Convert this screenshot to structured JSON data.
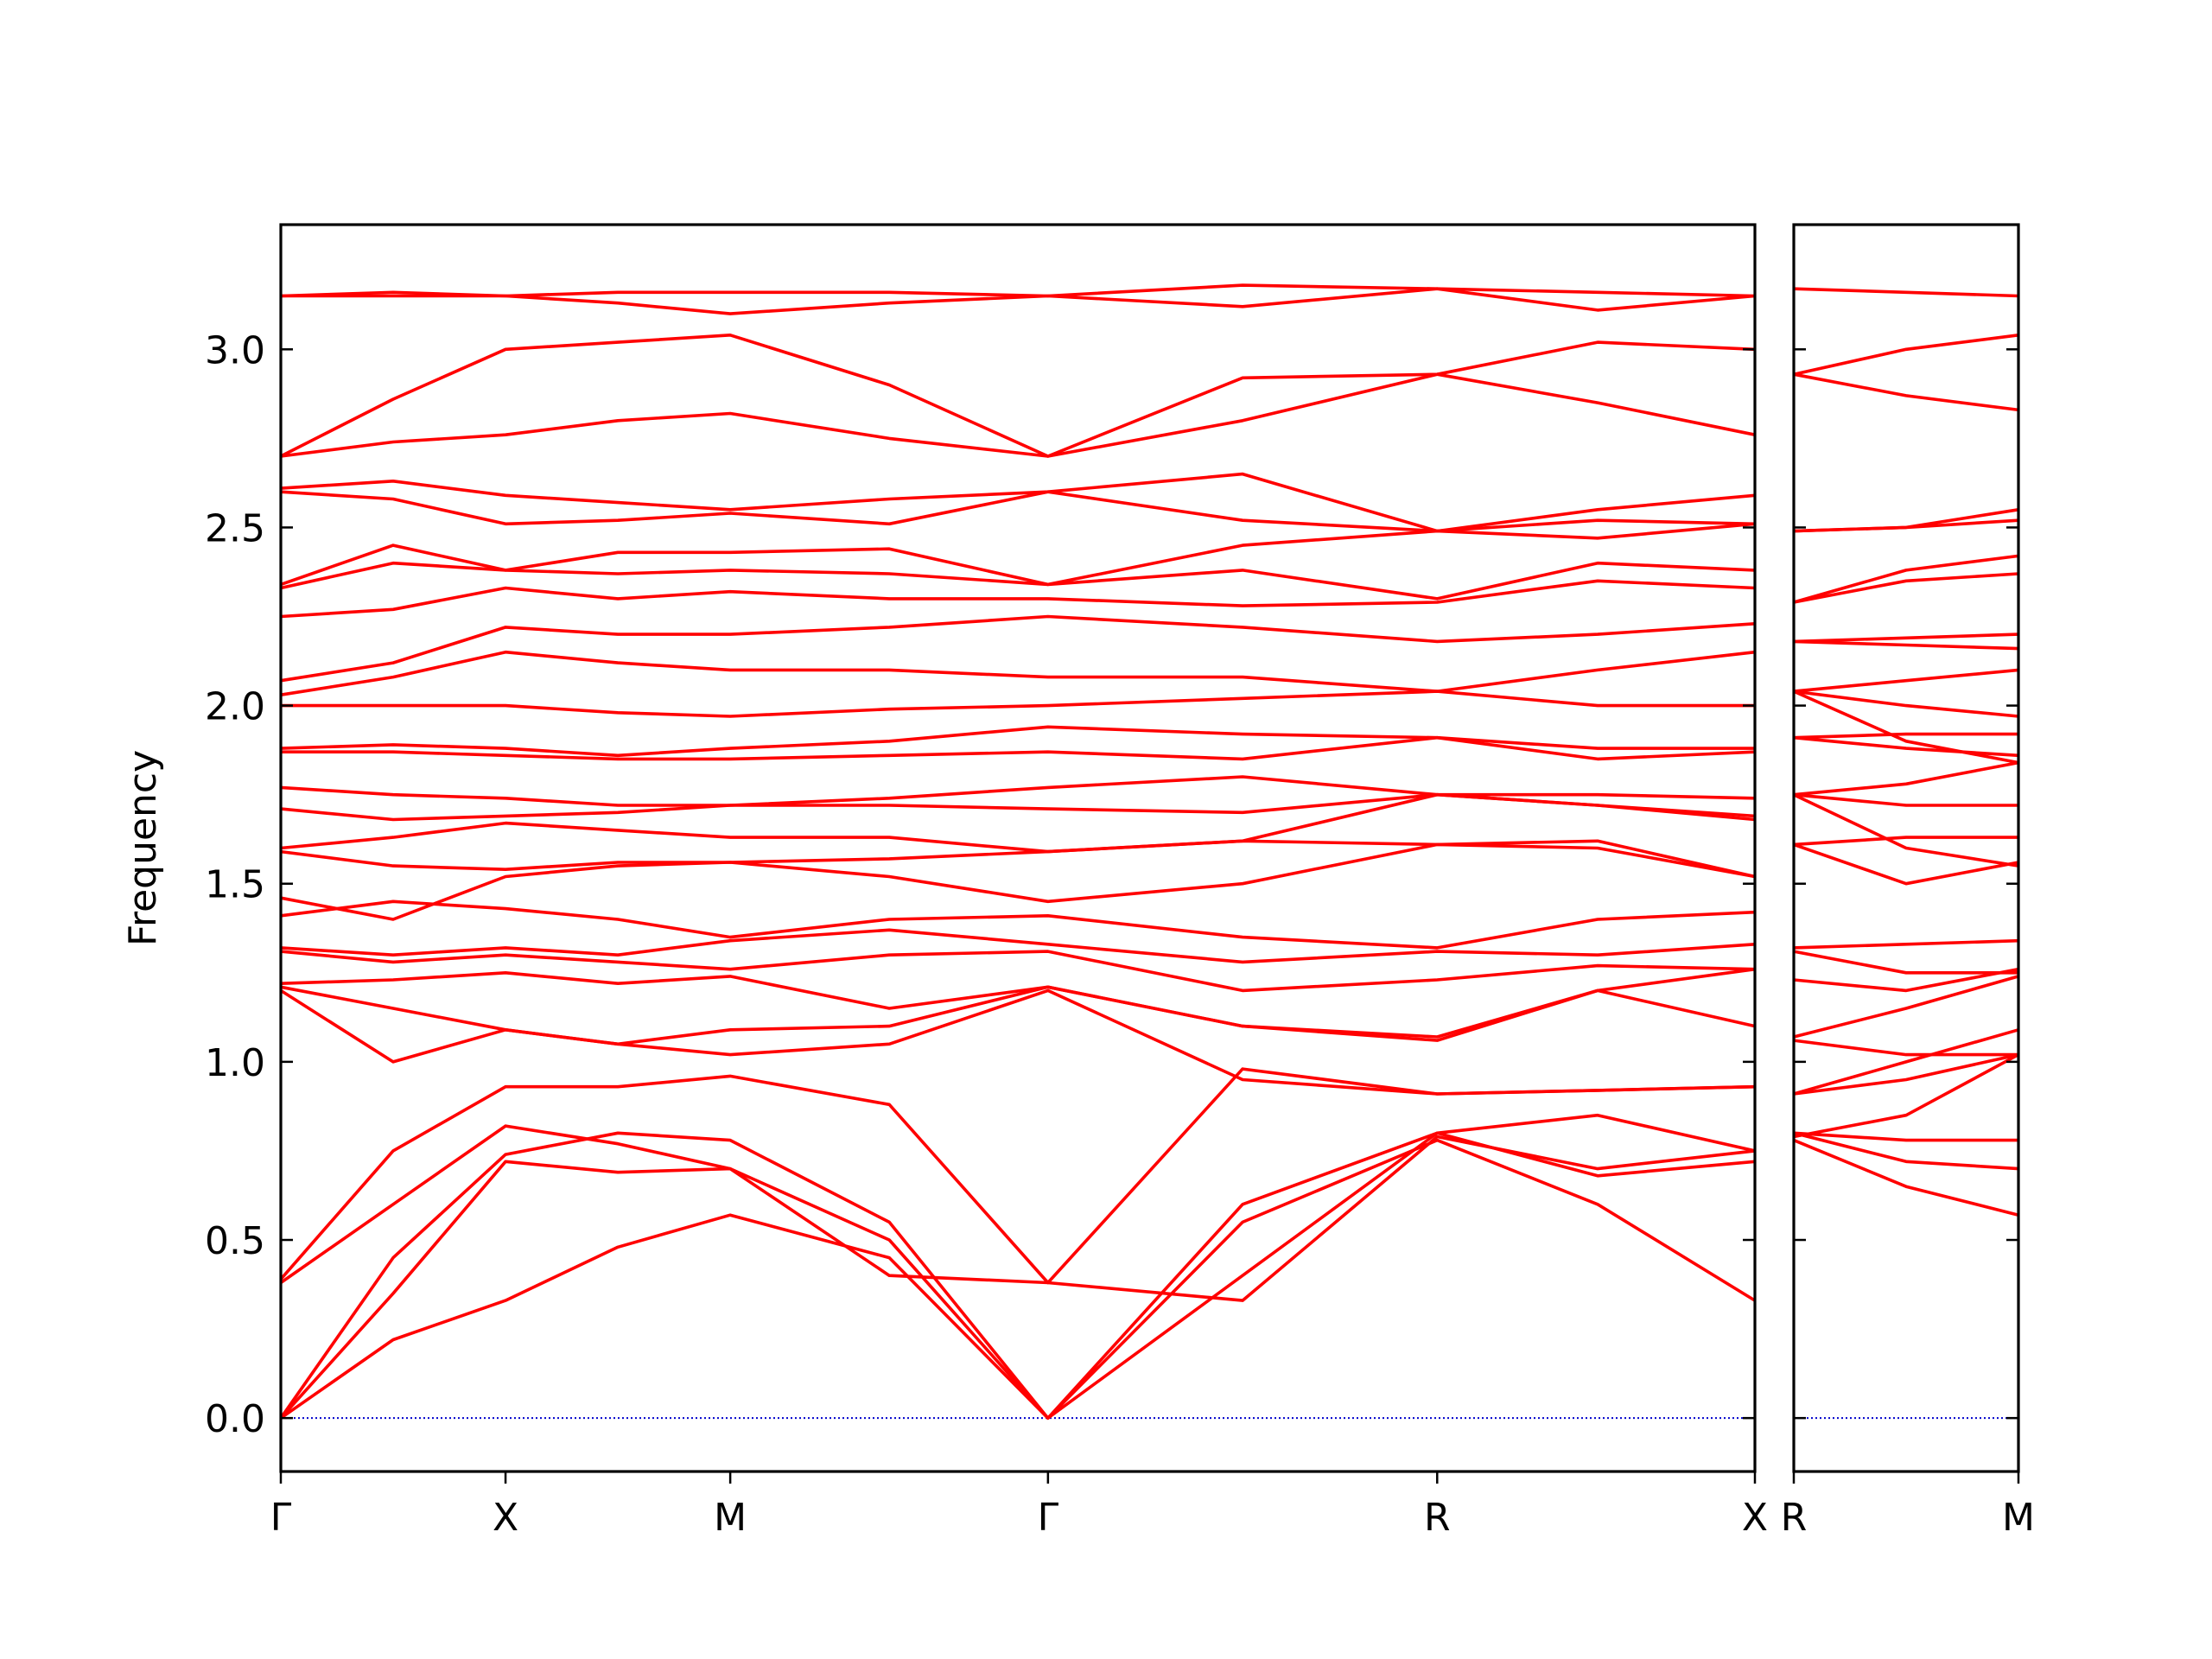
{
  "chart_data": [
    {
      "type": "line",
      "ylabel": "Frequency",
      "color": "#ff0000",
      "x": [
        0,
        0.25,
        0.5,
        0.75,
        1.0,
        1.354,
        1.707,
        2.14,
        2.573,
        2.93,
        3.28
      ],
      "xlim": [
        0,
        3.28
      ],
      "xticks": [
        {
          "value": 0,
          "label": "Γ"
        },
        {
          "value": 0.5,
          "label": "X"
        },
        {
          "value": 1.0,
          "label": "M"
        },
        {
          "value": 1.707,
          "label": "Γ"
        },
        {
          "value": 2.573,
          "label": "R"
        },
        {
          "value": 3.28,
          "label": "X"
        }
      ],
      "ylim": [
        -0.15,
        3.35
      ],
      "yticks": [
        {
          "value": 0,
          "label": "0.0"
        },
        {
          "value": 0.5,
          "label": "0.5"
        },
        {
          "value": 1,
          "label": "1.0"
        },
        {
          "value": 1.5,
          "label": "1.5"
        },
        {
          "value": 2,
          "label": "2.0"
        },
        {
          "value": 2.5,
          "label": "2.5"
        },
        {
          "value": 3,
          "label": "3.0"
        }
      ],
      "hline": {
        "y": 0,
        "color": "#0000cc"
      },
      "series": [
        {
          "values": [
            0,
            0.22,
            0.33,
            0.48,
            0.57,
            0.45,
            0,
            0.55,
            0.78,
            0.6,
            0.33
          ]
        },
        {
          "values": [
            0,
            0.35,
            0.72,
            0.69,
            0.7,
            0.5,
            0,
            0.6,
            0.8,
            0.68,
            0.72
          ]
        },
        {
          "values": [
            0,
            0.45,
            0.74,
            0.8,
            0.78,
            0.55,
            0,
            0.4,
            0.8,
            0.85,
            0.75
          ]
        },
        {
          "values": [
            0.38,
            0.6,
            0.82,
            0.77,
            0.7,
            0.4,
            0.38,
            0.33,
            0.79,
            0.7,
            0.75
          ]
        },
        {
          "values": [
            0.39,
            0.75,
            0.93,
            0.93,
            0.96,
            0.88,
            0.38,
            0.98,
            0.91,
            0.92,
            0.93
          ]
        },
        {
          "values": [
            1.2,
            1.0,
            1.09,
            1.05,
            1.02,
            1.05,
            1.2,
            0.95,
            0.91,
            0.92,
            0.93
          ]
        },
        {
          "values": [
            1.21,
            1.15,
            1.09,
            1.05,
            1.09,
            1.1,
            1.21,
            1.1,
            1.06,
            1.2,
            1.1
          ]
        },
        {
          "values": [
            1.22,
            1.23,
            1.25,
            1.22,
            1.24,
            1.15,
            1.21,
            1.1,
            1.07,
            1.2,
            1.26
          ]
        },
        {
          "values": [
            1.31,
            1.28,
            1.3,
            1.28,
            1.26,
            1.3,
            1.31,
            1.2,
            1.23,
            1.27,
            1.26
          ]
        },
        {
          "values": [
            1.32,
            1.3,
            1.32,
            1.3,
            1.34,
            1.37,
            1.33,
            1.28,
            1.31,
            1.3,
            1.33
          ]
        },
        {
          "values": [
            1.41,
            1.45,
            1.43,
            1.4,
            1.35,
            1.4,
            1.41,
            1.35,
            1.32,
            1.4,
            1.42
          ]
        },
        {
          "values": [
            1.46,
            1.4,
            1.52,
            1.55,
            1.56,
            1.52,
            1.45,
            1.5,
            1.61,
            1.6,
            1.52
          ]
        },
        {
          "values": [
            1.59,
            1.55,
            1.54,
            1.56,
            1.56,
            1.57,
            1.59,
            1.62,
            1.61,
            1.62,
            1.52
          ]
        },
        {
          "values": [
            1.6,
            1.63,
            1.67,
            1.65,
            1.63,
            1.63,
            1.59,
            1.62,
            1.75,
            1.72,
            1.68
          ]
        },
        {
          "values": [
            1.71,
            1.68,
            1.69,
            1.7,
            1.72,
            1.72,
            1.71,
            1.7,
            1.75,
            1.72,
            1.69
          ]
        },
        {
          "values": [
            1.77,
            1.75,
            1.74,
            1.72,
            1.72,
            1.74,
            1.77,
            1.8,
            1.75,
            1.75,
            1.74
          ]
        },
        {
          "values": [
            1.87,
            1.87,
            1.86,
            1.85,
            1.85,
            1.86,
            1.87,
            1.85,
            1.91,
            1.85,
            1.87
          ]
        },
        {
          "values": [
            1.88,
            1.89,
            1.88,
            1.86,
            1.88,
            1.9,
            1.94,
            1.92,
            1.91,
            1.88,
            1.88
          ]
        },
        {
          "values": [
            2.0,
            2.0,
            2.0,
            1.98,
            1.97,
            1.99,
            2.0,
            2.02,
            2.04,
            2.0,
            2.0
          ]
        },
        {
          "values": [
            2.03,
            2.08,
            2.15,
            2.12,
            2.1,
            2.1,
            2.08,
            2.08,
            2.04,
            2.1,
            2.15
          ]
        },
        {
          "values": [
            2.07,
            2.12,
            2.22,
            2.2,
            2.2,
            2.22,
            2.25,
            2.22,
            2.18,
            2.2,
            2.23
          ]
        },
        {
          "values": [
            2.25,
            2.27,
            2.33,
            2.3,
            2.32,
            2.3,
            2.3,
            2.28,
            2.29,
            2.35,
            2.33
          ]
        },
        {
          "values": [
            2.33,
            2.4,
            2.38,
            2.37,
            2.38,
            2.37,
            2.34,
            2.38,
            2.3,
            2.4,
            2.38
          ]
        },
        {
          "values": [
            2.34,
            2.45,
            2.38,
            2.43,
            2.43,
            2.44,
            2.34,
            2.45,
            2.49,
            2.47,
            2.51
          ]
        },
        {
          "values": [
            2.6,
            2.58,
            2.51,
            2.52,
            2.54,
            2.51,
            2.6,
            2.52,
            2.49,
            2.55,
            2.59
          ]
        },
        {
          "values": [
            2.61,
            2.63,
            2.59,
            2.57,
            2.55,
            2.58,
            2.6,
            2.65,
            2.49,
            2.52,
            2.51
          ]
        },
        {
          "values": [
            2.7,
            2.74,
            2.76,
            2.8,
            2.82,
            2.75,
            2.7,
            2.8,
            2.93,
            2.85,
            2.76
          ]
        },
        {
          "values": [
            2.7,
            2.86,
            3.0,
            3.02,
            3.04,
            2.9,
            2.7,
            2.92,
            2.93,
            3.02,
            3.0
          ]
        },
        {
          "values": [
            3.15,
            3.15,
            3.15,
            3.13,
            3.1,
            3.13,
            3.15,
            3.12,
            3.17,
            3.11,
            3.15
          ]
        },
        {
          "values": [
            3.15,
            3.16,
            3.15,
            3.16,
            3.16,
            3.16,
            3.15,
            3.18,
            3.17,
            3.16,
            3.15
          ]
        }
      ]
    },
    {
      "type": "line",
      "color": "#ff0000",
      "x": [
        0,
        0.25,
        0.5
      ],
      "xlim": [
        0,
        0.5
      ],
      "xticks": [
        {
          "value": 0,
          "label": "R"
        },
        {
          "value": 0.5,
          "label": "M"
        }
      ],
      "ylim": [
        -0.15,
        3.35
      ],
      "yticks": [
        0,
        0.5,
        1,
        1.5,
        2,
        2.5,
        3
      ],
      "hline": {
        "y": 0,
        "color": "#0000cc"
      },
      "series": [
        {
          "values": [
            0.78,
            0.65,
            0.57
          ]
        },
        {
          "values": [
            0.8,
            0.72,
            0.7
          ]
        },
        {
          "values": [
            0.8,
            0.78,
            0.78
          ]
        },
        {
          "values": [
            0.79,
            0.85,
            1.02
          ]
        },
        {
          "values": [
            0.91,
            0.95,
            1.02
          ]
        },
        {
          "values": [
            0.91,
            1.0,
            1.09
          ]
        },
        {
          "values": [
            1.06,
            1.02,
            1.02
          ]
        },
        {
          "values": [
            1.07,
            1.15,
            1.24
          ]
        },
        {
          "values": [
            1.23,
            1.2,
            1.26
          ]
        },
        {
          "values": [
            1.31,
            1.25,
            1.25
          ]
        },
        {
          "values": [
            1.32,
            1.33,
            1.34
          ]
        },
        {
          "values": [
            1.61,
            1.5,
            1.56
          ]
        },
        {
          "values": [
            1.61,
            1.63,
            1.63
          ]
        },
        {
          "values": [
            1.75,
            1.6,
            1.55
          ]
        },
        {
          "values": [
            1.75,
            1.72,
            1.72
          ]
        },
        {
          "values": [
            1.75,
            1.78,
            1.84
          ]
        },
        {
          "values": [
            1.91,
            1.88,
            1.86
          ]
        },
        {
          "values": [
            1.91,
            1.92,
            1.92
          ]
        },
        {
          "values": [
            2.04,
            1.9,
            1.84
          ]
        },
        {
          "values": [
            2.04,
            2.0,
            1.97
          ]
        },
        {
          "values": [
            2.04,
            2.07,
            2.1
          ]
        },
        {
          "values": [
            2.18,
            2.17,
            2.16
          ]
        },
        {
          "values": [
            2.18,
            2.19,
            2.2
          ]
        },
        {
          "values": [
            2.29,
            2.35,
            2.37
          ]
        },
        {
          "values": [
            2.29,
            2.38,
            2.42
          ]
        },
        {
          "values": [
            2.49,
            2.5,
            2.52
          ]
        },
        {
          "values": [
            2.49,
            2.5,
            2.55
          ]
        },
        {
          "values": [
            2.93,
            2.87,
            2.83
          ]
        },
        {
          "values": [
            2.93,
            3.0,
            3.04
          ]
        },
        {
          "values": [
            3.17,
            3.16,
            3.15
          ]
        }
      ]
    }
  ]
}
